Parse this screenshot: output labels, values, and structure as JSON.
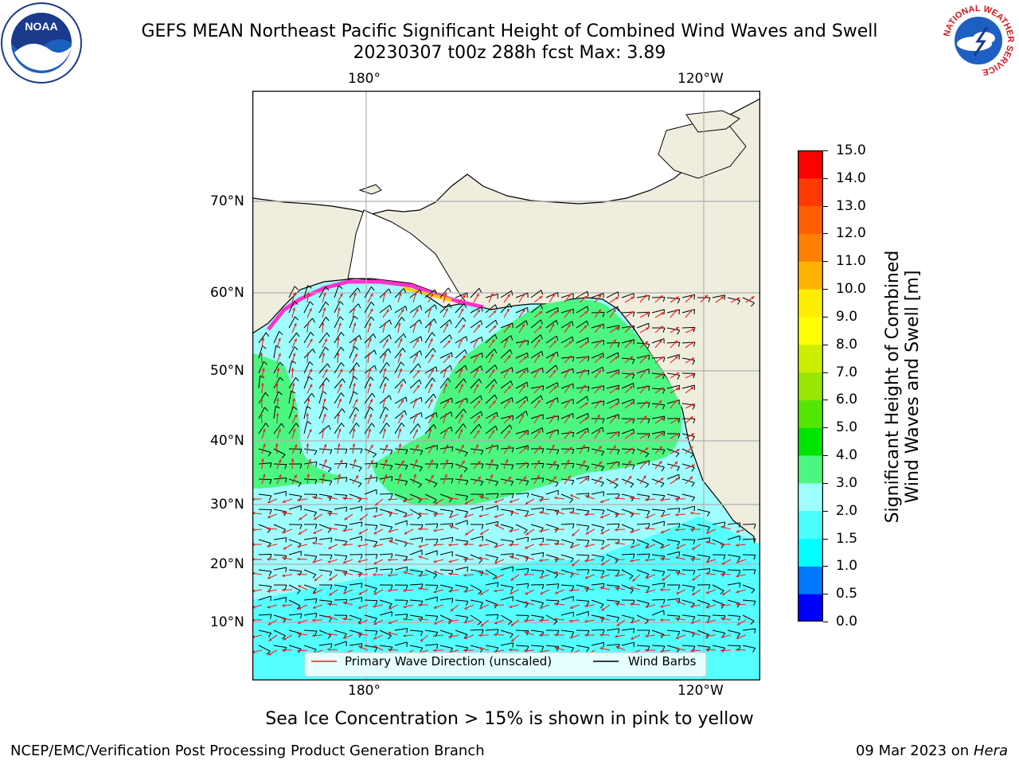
{
  "header": {
    "title_line1": "GEFS MEAN Northeast Pacific Significant Height of Combined Wind Waves and Swell",
    "title_line2": "20230307 t00z 288h fcst   Max: 3.89"
  },
  "logos": {
    "left": {
      "name": "noaa-logo",
      "text": "NOAA"
    },
    "right": {
      "name": "nws-logo",
      "text": "NATIONAL WEATHER SERVICE"
    }
  },
  "map": {
    "lon_labels_top": [
      "180°",
      "120°W"
    ],
    "lon_labels_bottom": [
      "180°",
      "120°W"
    ],
    "lat_labels": [
      "70°N",
      "60°N",
      "50°N",
      "40°N",
      "30°N",
      "20°N",
      "10°N"
    ],
    "colors": {
      "land": "#efedde",
      "sea_low": "#55ffff",
      "sea_mid": "#9ffdfd",
      "sea_high": "#4bf780",
      "wave_arrow": "#e8231e",
      "wind_barb": "#000000",
      "ice_pink": "#ff33cc",
      "ice_yellow": "#ffcc00"
    }
  },
  "legend": {
    "items": [
      {
        "label": "Primary Wave Direction (unscaled)",
        "color": "#e8231e"
      },
      {
        "label": "Wind Barbs",
        "color": "#000000"
      }
    ]
  },
  "colorbar": {
    "label_line1": "Significant Height of Combined",
    "label_line2": "Wind Waves and Swell [m]",
    "ticks": [
      "0.0",
      "0.5",
      "1.0",
      "1.5",
      "2.0",
      "3.0",
      "4.0",
      "5.0",
      "6.0",
      "7.0",
      "8.0",
      "9.0",
      "10.0",
      "11.0",
      "12.0",
      "13.0",
      "14.0",
      "15.0"
    ],
    "colors": [
      "#0000ff",
      "#0078ff",
      "#00ffff",
      "#4bffff",
      "#9ffdfd",
      "#4bf780",
      "#00e500",
      "#55e600",
      "#99e600",
      "#ccef00",
      "#ffff00",
      "#ffee00",
      "#ffb400",
      "#ff8000",
      "#ff5f00",
      "#ff3a00",
      "#ff0000"
    ]
  },
  "notes": {
    "sea_ice": "Sea Ice Concentration > 15% is shown in pink to yellow"
  },
  "footer": {
    "left": "NCEP/EMC/Verification Post Processing Product Generation Branch",
    "right_prefix": "09 Mar 2023 on",
    "right_host": "Hera"
  }
}
